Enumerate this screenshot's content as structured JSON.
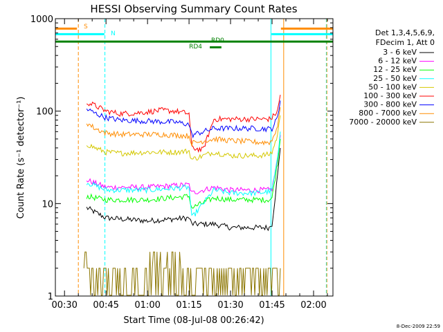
{
  "chart_data": {
    "type": "line",
    "title": "HESSI Observing Summary Count Rates",
    "xlabel": "Start Time (08-Jul-08 00:26:42)",
    "ylabel": "Count Rate (s⁻¹ detector⁻¹)",
    "y_scale": "log",
    "ylim": [
      1,
      1000
    ],
    "xlim_minutes": [
      26.7,
      127
    ],
    "x_ticks": [
      {
        "label": "00:30",
        "minute": 30
      },
      {
        "label": "00:45",
        "minute": 45
      },
      {
        "label": "01:00",
        "minute": 60
      },
      {
        "label": "01:15",
        "minute": 75
      },
      {
        "label": "01:30",
        "minute": 90
      },
      {
        "label": "01:45",
        "minute": 105
      },
      {
        "label": "02:00",
        "minute": 120
      }
    ],
    "y_ticks": [
      {
        "label": "1",
        "value": 1
      },
      {
        "label": "10",
        "value": 10
      },
      {
        "label": "100",
        "value": 100
      },
      {
        "label": "1000",
        "value": 1000
      }
    ],
    "legend_position": "right",
    "legend_header": [
      "Det 1,3,4,5,6,9,",
      "FDecim 1, Att 0"
    ],
    "series": [
      {
        "name": "3 - 6 keV",
        "color": "#000000",
        "x": [
          38,
          45,
          60,
          75,
          76,
          84,
          90,
          100,
          104,
          105,
          107,
          108
        ],
        "y": [
          9,
          7,
          6.5,
          7,
          6,
          6,
          5.5,
          5.5,
          5.5,
          6,
          20,
          40
        ]
      },
      {
        "name": "6 - 12 keV",
        "color": "#ff00ff",
        "x": [
          38,
          45,
          60,
          75,
          76,
          84,
          90,
          100,
          104,
          105,
          107,
          108
        ],
        "y": [
          18,
          15,
          15,
          16,
          13,
          15,
          14,
          14,
          14,
          14.5,
          30,
          55
        ]
      },
      {
        "name": "12 - 25 keV",
        "color": "#00ff00",
        "x": [
          38,
          45,
          60,
          75,
          76,
          84,
          90,
          100,
          104,
          105,
          107,
          108
        ],
        "y": [
          12,
          11,
          11,
          12,
          9,
          11.5,
          11,
          11,
          11,
          11.5,
          28,
          50
        ]
      },
      {
        "name": "25 - 50 keV",
        "color": "#00ffff",
        "x": [
          38,
          45,
          60,
          75,
          76,
          84,
          90,
          100,
          104,
          105,
          107,
          108
        ],
        "y": [
          17,
          14,
          14,
          15,
          7,
          14,
          13,
          13,
          13.5,
          14,
          30,
          60
        ]
      },
      {
        "name": "50 - 100 keV",
        "color": "#d4c800",
        "x": [
          38,
          41,
          45,
          50,
          60,
          65,
          70,
          75,
          76,
          84,
          90,
          100,
          104,
          105,
          107,
          108
        ],
        "y": [
          44,
          40,
          36,
          35,
          36,
          36,
          36,
          37,
          30,
          36,
          33,
          33,
          34,
          36,
          55,
          90
        ]
      },
      {
        "name": "100 - 300 keV",
        "color": "#ff0000",
        "x": [
          38,
          41,
          45,
          50,
          55,
          60,
          65,
          70,
          75,
          76,
          80,
          84,
          90,
          100,
          104,
          105,
          107,
          108
        ],
        "y": [
          125,
          115,
          100,
          94,
          95,
          98,
          102,
          100,
          94,
          40,
          38,
          82,
          82,
          82,
          82,
          85,
          100,
          150
        ]
      },
      {
        "name": "300 - 800 keV",
        "color": "#0000ff",
        "x": [
          38,
          41,
          45,
          50,
          60,
          65,
          70,
          75,
          76,
          84,
          90,
          100,
          104,
          105,
          107,
          108
        ],
        "y": [
          105,
          95,
          85,
          80,
          78,
          77,
          76,
          72,
          55,
          65,
          65,
          65,
          64,
          65,
          85,
          130
        ]
      },
      {
        "name": "800 - 7000 keV",
        "color": "#ff8c00",
        "x": [
          38,
          41,
          45,
          50,
          60,
          65,
          70,
          75,
          76,
          84,
          90,
          100,
          104,
          105,
          107,
          108
        ],
        "y": [
          75,
          65,
          58,
          56,
          56,
          56,
          55,
          54,
          45,
          50,
          48,
          46,
          46,
          48,
          70,
          110
        ]
      },
      {
        "name": "7000 - 20000 keV",
        "color": "#8b7500",
        "x": [
          37,
          39,
          45,
          50,
          55,
          60,
          63,
          68,
          72,
          76,
          81,
          86,
          90,
          95,
          100,
          104,
          108
        ],
        "y": [
          3,
          2,
          2,
          2,
          2,
          3,
          3,
          3,
          2,
          2,
          2,
          2,
          2,
          2,
          2,
          2,
          2
        ]
      }
    ],
    "annotations": [
      {
        "label": "S",
        "color": "#ff8c00",
        "type": "status-bar",
        "segments": [
          [
            26.7,
            34.5
          ],
          [
            108.2,
            127
          ]
        ],
        "y_level": 780
      },
      {
        "label": "N",
        "color": "#00ffff",
        "type": "status-bar",
        "segments": [
          [
            26.7,
            44.4
          ],
          [
            104.8,
            127
          ]
        ],
        "y_level": 680
      },
      {
        "label": "RD0",
        "color": "#008000",
        "type": "status-bar",
        "segments": [
          [
            26.7,
            127
          ]
        ],
        "y_level": 565
      },
      {
        "label": "RD4",
        "color": "#008000",
        "type": "status-bar",
        "segments": [
          [
            82.5,
            86.7
          ]
        ],
        "y_level": 490
      }
    ],
    "vertical_lines": [
      {
        "minute": 35,
        "color": "#ff8c00",
        "dash": true
      },
      {
        "minute": 44.6,
        "color": "#00ffff",
        "dash": true
      },
      {
        "minute": 104.6,
        "color": "#00ffff",
        "dash": false
      },
      {
        "minute": 109.2,
        "color": "#ff8c00",
        "dash": false
      },
      {
        "minute": 124.6,
        "color": "#00ffff",
        "dash": true
      },
      {
        "minute": 124.8,
        "color": "#ff8c00",
        "dash": true
      }
    ]
  },
  "footer": {
    "timestamp": "8-Dec-2009 22:59"
  }
}
